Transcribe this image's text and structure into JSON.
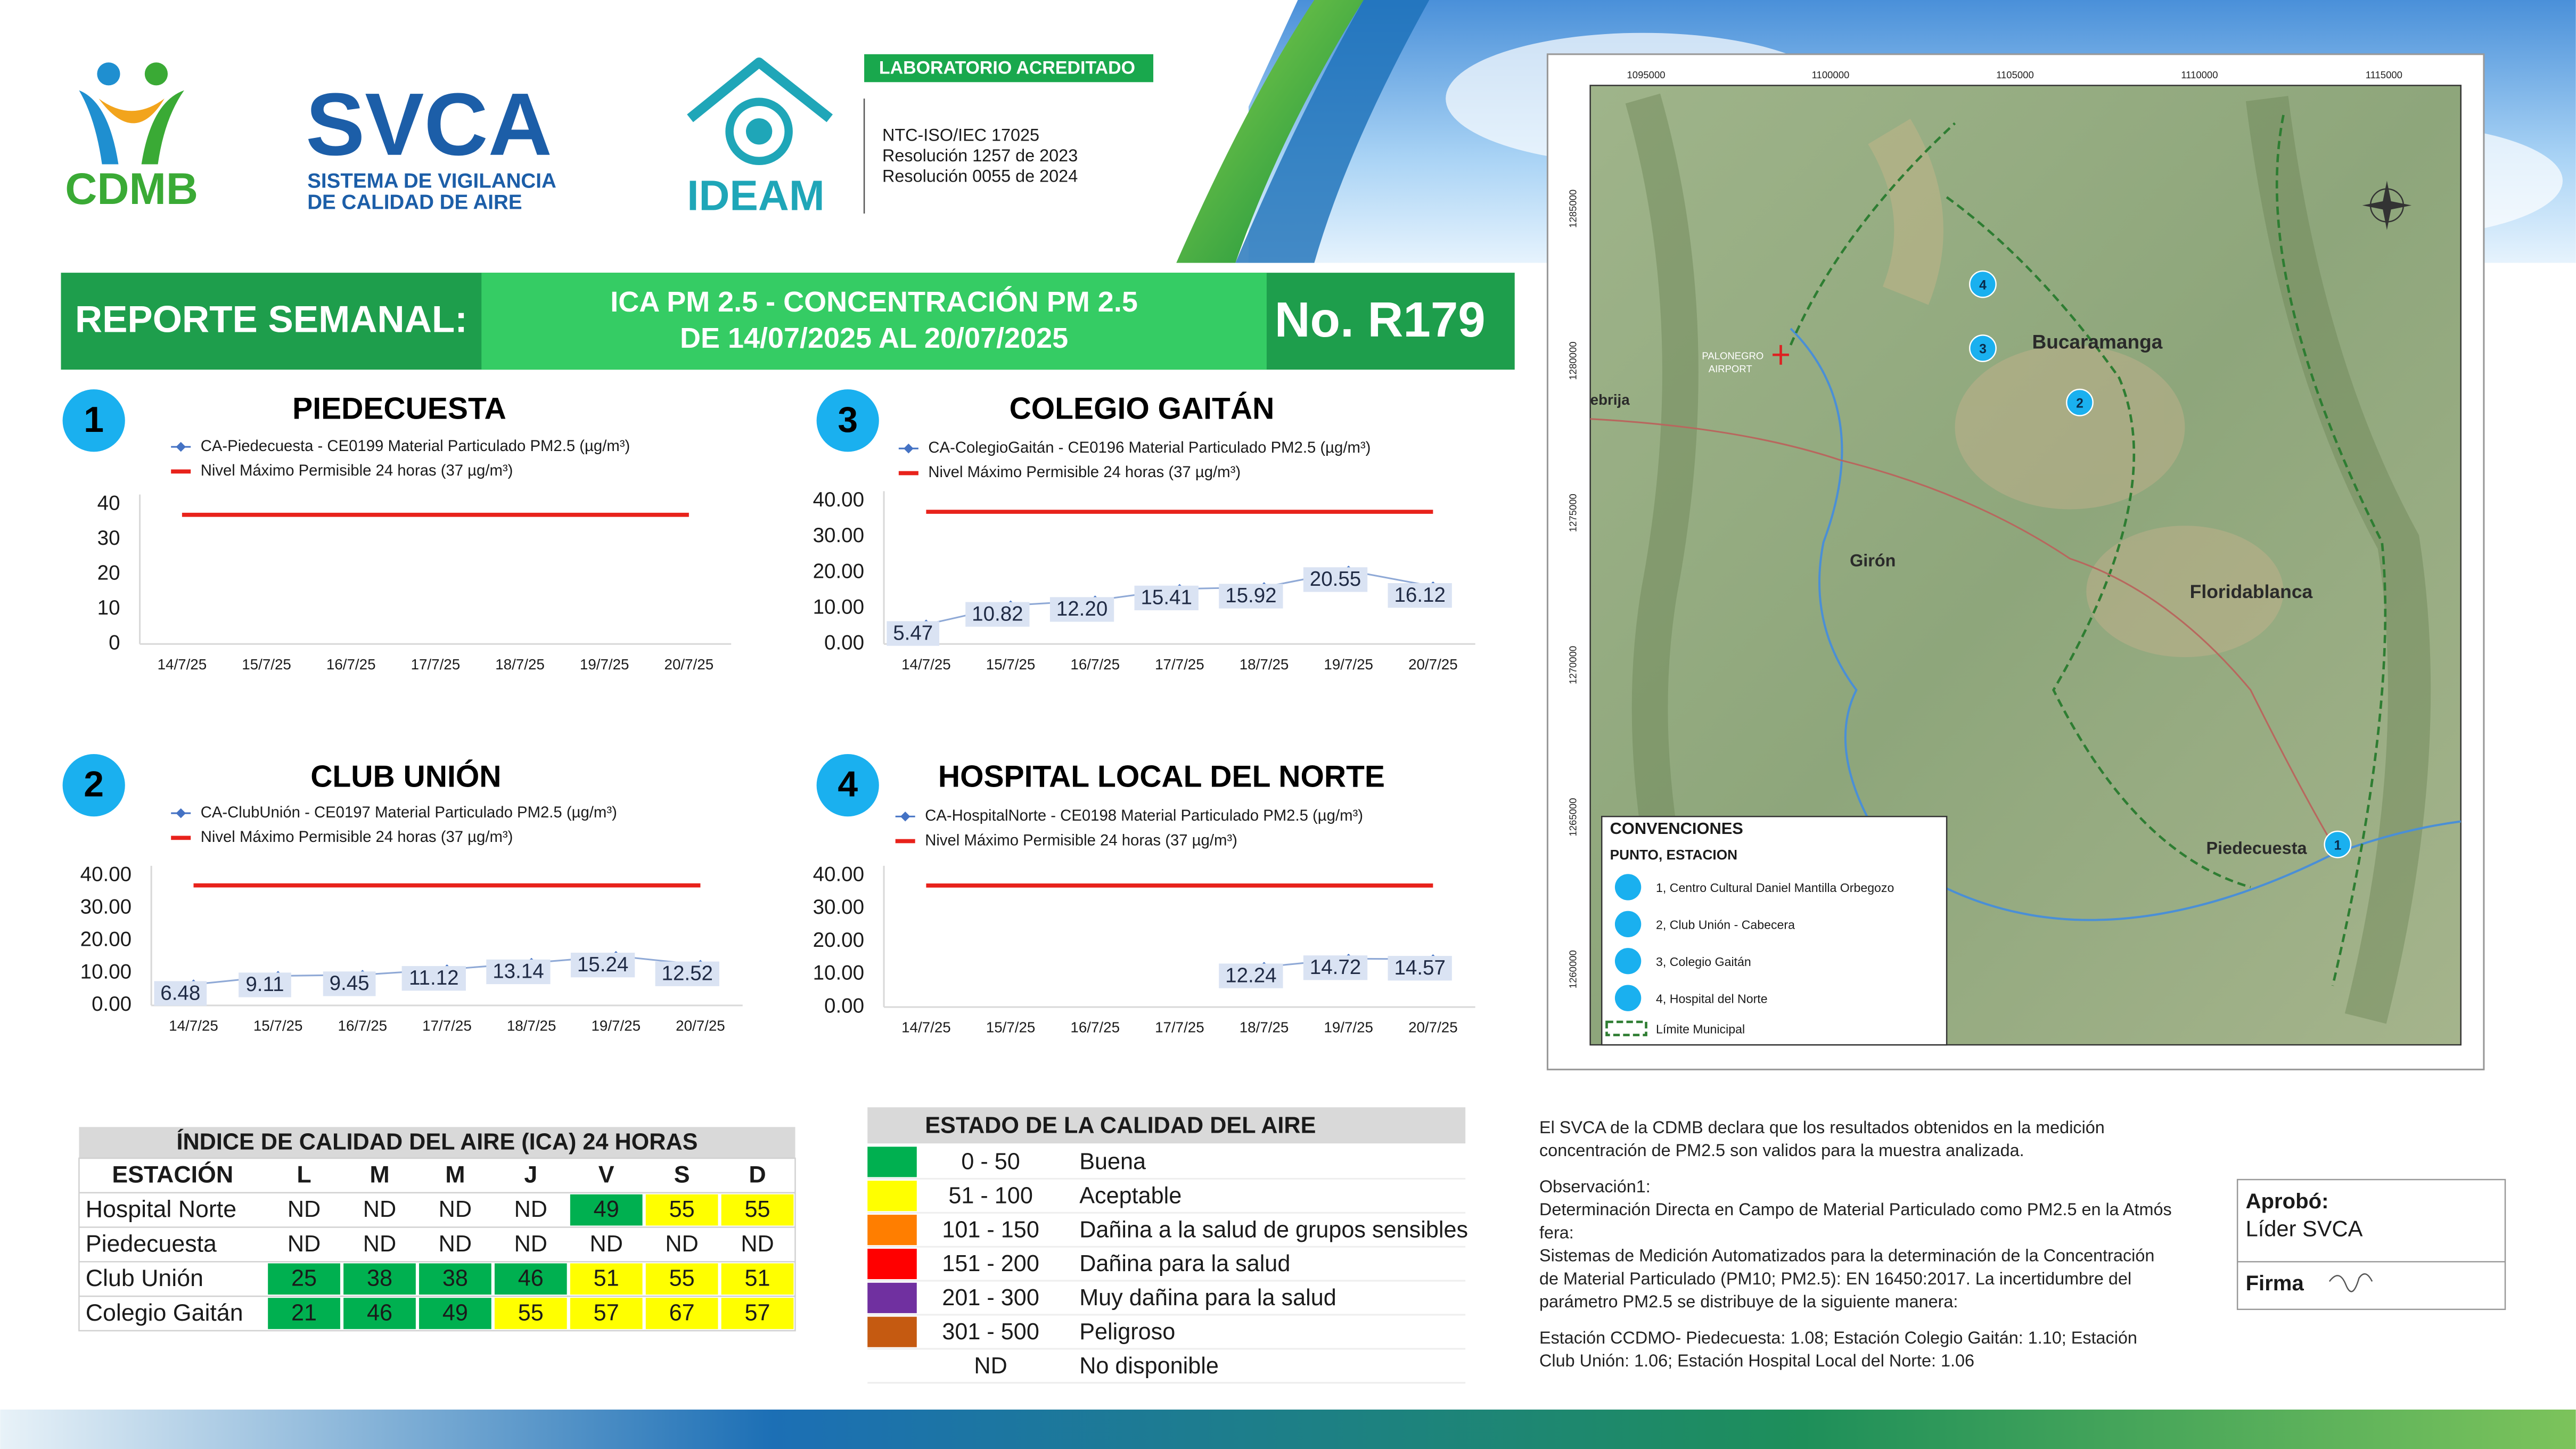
{
  "header": {
    "cdmb": "CDMB",
    "svca": "SVCA",
    "svca_lines": [
      "SISTEMA DE VIGILANCIA",
      "DE CALIDAD DE AIRE"
    ],
    "ideam": "IDEAM",
    "badge": "LABORATORIO ACREDITADO",
    "accreditation": [
      "NTC-ISO/IEC 17025",
      "Resolución 1257 de 2023",
      "Resolución 0055 de 2024"
    ]
  },
  "banner": {
    "label": "REPORTE SEMANAL:",
    "subject": [
      "ICA PM 2.5 - CONCENTRACIÓN PM 2.5",
      "DE 14/07/2025 AL 20/07/2025"
    ],
    "number": "No. R179"
  },
  "chart_data": [
    {
      "type": "line",
      "number": 1,
      "title": "PIEDECUESTA",
      "categories": [
        "14/7/25",
        "15/7/25",
        "16/7/25",
        "17/7/25",
        "18/7/25",
        "19/7/25",
        "20/7/25"
      ],
      "series": [
        {
          "name": "CA-Piedecuesta - CE0199 Material Particulado PM2.5 (µg/m³)",
          "color": "#4472c4",
          "marker": "diamond",
          "values": [
            null,
            null,
            null,
            null,
            null,
            null,
            null
          ]
        },
        {
          "name": "Nivel Máximo Permisible 24 horas (37 µg/m³)",
          "color": "#e8221b",
          "values": [
            37,
            37,
            37,
            37,
            37,
            37,
            37
          ]
        }
      ],
      "ylim": [
        0,
        40
      ],
      "yticks": [
        0,
        10,
        20,
        30,
        40
      ]
    },
    {
      "type": "line",
      "number": 2,
      "title": "CLUB UNIÓN",
      "categories": [
        "14/7/25",
        "15/7/25",
        "16/7/25",
        "17/7/25",
        "18/7/25",
        "19/7/25",
        "20/7/25"
      ],
      "series": [
        {
          "name": "CA-ClubUnión - CE0197 Material Particulado PM2.5 (µg/m³)",
          "color": "#4472c4",
          "marker": "diamond",
          "values": [
            6.48,
            9.11,
            9.45,
            11.12,
            13.14,
            15.24,
            12.52
          ],
          "value_labels": [
            "6.48",
            "9.11",
            "9.45",
            "11.12",
            "13.14",
            "15.24",
            "12.52"
          ]
        },
        {
          "name": "Nivel Máximo Permisible 24 horas (37 µg/m³)",
          "color": "#e8221b",
          "values": [
            37,
            37,
            37,
            37,
            37,
            37,
            37
          ]
        }
      ],
      "ylim": [
        0,
        40
      ],
      "yticks": [
        {
          "value": 0,
          "label": "0.00"
        },
        {
          "value": 10,
          "label": "10.00"
        },
        {
          "value": 20,
          "label": "20.00"
        },
        {
          "value": 30,
          "label": "30.00"
        },
        {
          "value": 40,
          "label": "40.00"
        }
      ]
    },
    {
      "type": "line",
      "number": 3,
      "title": "COLEGIO GAITÁN",
      "categories": [
        "14/7/25",
        "15/7/25",
        "16/7/25",
        "17/7/25",
        "18/7/25",
        "19/7/25",
        "20/7/25"
      ],
      "series": [
        {
          "name": "CA-ColegioGaitán  - CE0196 Material Particulado PM2.5 (µg/m³)",
          "color": "#4472c4",
          "marker": "diamond",
          "values": [
            5.47,
            10.82,
            12.2,
            15.41,
            15.92,
            20.55,
            16.12
          ],
          "value_labels": [
            "5.47",
            "10.82",
            "12.20",
            "15.41",
            "15.92",
            "20.55",
            "16.12"
          ]
        },
        {
          "name": "Nivel Máximo Permisible 24 horas (37 µg/m³)",
          "color": "#e8221b",
          "values": [
            37,
            37,
            37,
            37,
            37,
            37,
            37
          ]
        }
      ],
      "ylim": [
        0,
        40
      ],
      "yticks": [
        {
          "value": 0,
          "label": "0.00"
        },
        {
          "value": 10,
          "label": "10.00"
        },
        {
          "value": 20,
          "label": "20.00"
        },
        {
          "value": 30,
          "label": "30.00"
        },
        {
          "value": 40,
          "label": "40.00"
        }
      ]
    },
    {
      "type": "line",
      "number": 4,
      "title": "HOSPITAL LOCAL DEL NORTE",
      "categories": [
        "14/7/25",
        "15/7/25",
        "16/7/25",
        "17/7/25",
        "18/7/25",
        "19/7/25",
        "20/7/25"
      ],
      "series": [
        {
          "name": "CA-HospitalNorte - CE0198 Material Particulado PM2.5 (µg/m³)",
          "color": "#4472c4",
          "marker": "diamond",
          "values": [
            null,
            null,
            null,
            null,
            12.24,
            14.72,
            14.57
          ],
          "value_labels": [
            null,
            null,
            null,
            null,
            "12.24",
            "14.72",
            "14.57"
          ]
        },
        {
          "name": "Nivel Máximo Permisible 24 horas (37 µg/m³)",
          "color": "#e8221b",
          "values": [
            37,
            37,
            37,
            37,
            37,
            37,
            37
          ]
        }
      ],
      "ylim": [
        0,
        40
      ],
      "yticks": [
        {
          "value": 0,
          "label": "0.00"
        },
        {
          "value": 10,
          "label": "10.00"
        },
        {
          "value": 20,
          "label": "20.00"
        },
        {
          "value": 30,
          "label": "30.00"
        },
        {
          "value": 40,
          "label": "40.00"
        }
      ]
    }
  ],
  "ica_table": {
    "title": "ÍNDICE DE CALIDAD DEL AIRE (ICA) 24 HORAS",
    "columns": [
      "ESTACIÓN",
      "L",
      "M",
      "M",
      "J",
      "V",
      "S",
      "D"
    ],
    "rows": [
      [
        "Hospital Norte",
        "ND",
        "ND",
        "ND",
        "ND",
        49,
        55,
        55
      ],
      [
        "Piedecuesta",
        "ND",
        "ND",
        "ND",
        "ND",
        "ND",
        "ND",
        "ND"
      ],
      [
        "Club Unión",
        25,
        38,
        38,
        46,
        51,
        55,
        51
      ],
      [
        "Colegio Gaitán",
        21,
        46,
        49,
        55,
        57,
        67,
        57
      ]
    ]
  },
  "quality_legend": {
    "title": "ESTADO DE LA CALIDAD DEL AIRE",
    "levels": [
      {
        "range": "0 - 50",
        "label": "Buena",
        "color": "#00b050"
      },
      {
        "range": "51 - 100",
        "label": "Aceptable",
        "color": "#ffff00"
      },
      {
        "range": "101 - 150",
        "label": "Dañina a la salud de grupos sensibles",
        "color": "#ff7e00"
      },
      {
        "range": "151 - 200",
        "label": "Dañina para la salud",
        "color": "#ff0000"
      },
      {
        "range": "201 - 300",
        "label": "Muy dañina para la salud",
        "color": "#7030a0"
      },
      {
        "range": "301 - 500",
        "label": "Peligroso",
        "color": "#c55a11"
      },
      {
        "range": "ND",
        "label": "No disponible"
      }
    ]
  },
  "notes": {
    "lines": [
      "El SVCA  de la CDMB declara que los resultados obtenidos en la medición",
      "concentración de PM2.5 son validos para la muestra  analizada.",
      "Observación1:",
      "Determinación Directa en Campo de Material Particulado como PM2.5 en la Atmós",
      "fera:",
      "Sistemas de Medición Automatizados para la  determinación de la Concentración",
      "de Material Particulado (PM10;  PM2.5): EN 16450:2017. La incertidumbre del",
      "parámetro PM2.5 se distribuye de la siguiente manera:",
      "Estación CCDMO- Piedecuesta: 1.08; Estación Colegio Gaitán: 1.10; Estación",
      "Club Unión: 1.06; Estación Hospital Local del Norte: 1.06"
    ]
  },
  "approval": {
    "approved_label": "Aprobó:",
    "approver": "Líder SVCA",
    "signature_label": "Firma"
  },
  "map": {
    "x_labels": [
      "1095000",
      "1100000",
      "1105000",
      "1110000",
      "1115000"
    ],
    "y_labels": [
      "1285000",
      "1280000",
      "1275000",
      "1270000",
      "1265000",
      "1260000"
    ],
    "places": [
      "Bucaramanga",
      "Girón",
      "Floridablanca",
      "Piedecuesta",
      "ebrija"
    ],
    "airport": [
      "PALONEGRO",
      "AIRPORT"
    ],
    "markers": [
      "1",
      "2",
      "3",
      "4"
    ],
    "legend": {
      "title": "CONVENCIONES",
      "subtitle": "PUNTO, ESTACION",
      "items": [
        "1, Centro Cultural Daniel Mantilla Orbegozo",
        "2, Club Unión - Cabecera",
        "3, Colegio Gaitán",
        "4, Hospital del Norte"
      ],
      "boundary": "Límite Municipal"
    }
  }
}
